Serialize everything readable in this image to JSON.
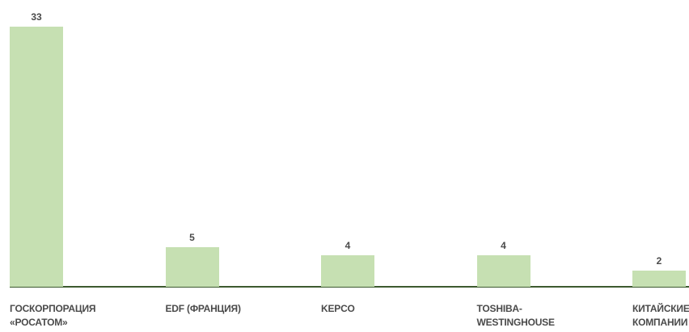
{
  "chart_data": {
    "type": "bar",
    "categories": [
      "ГОСКОРПОРАЦИЯ\n«РОСАТОМ»",
      "EDF (ФРАНЦИЯ)",
      "KEPCO",
      "TOSHIBA-\nWESTINGHOUSE",
      "КИТАЙСКИЕ\nКОМПАНИИ"
    ],
    "values": [
      33,
      5,
      4,
      4,
      2
    ],
    "color": "#c6e0b2"
  }
}
